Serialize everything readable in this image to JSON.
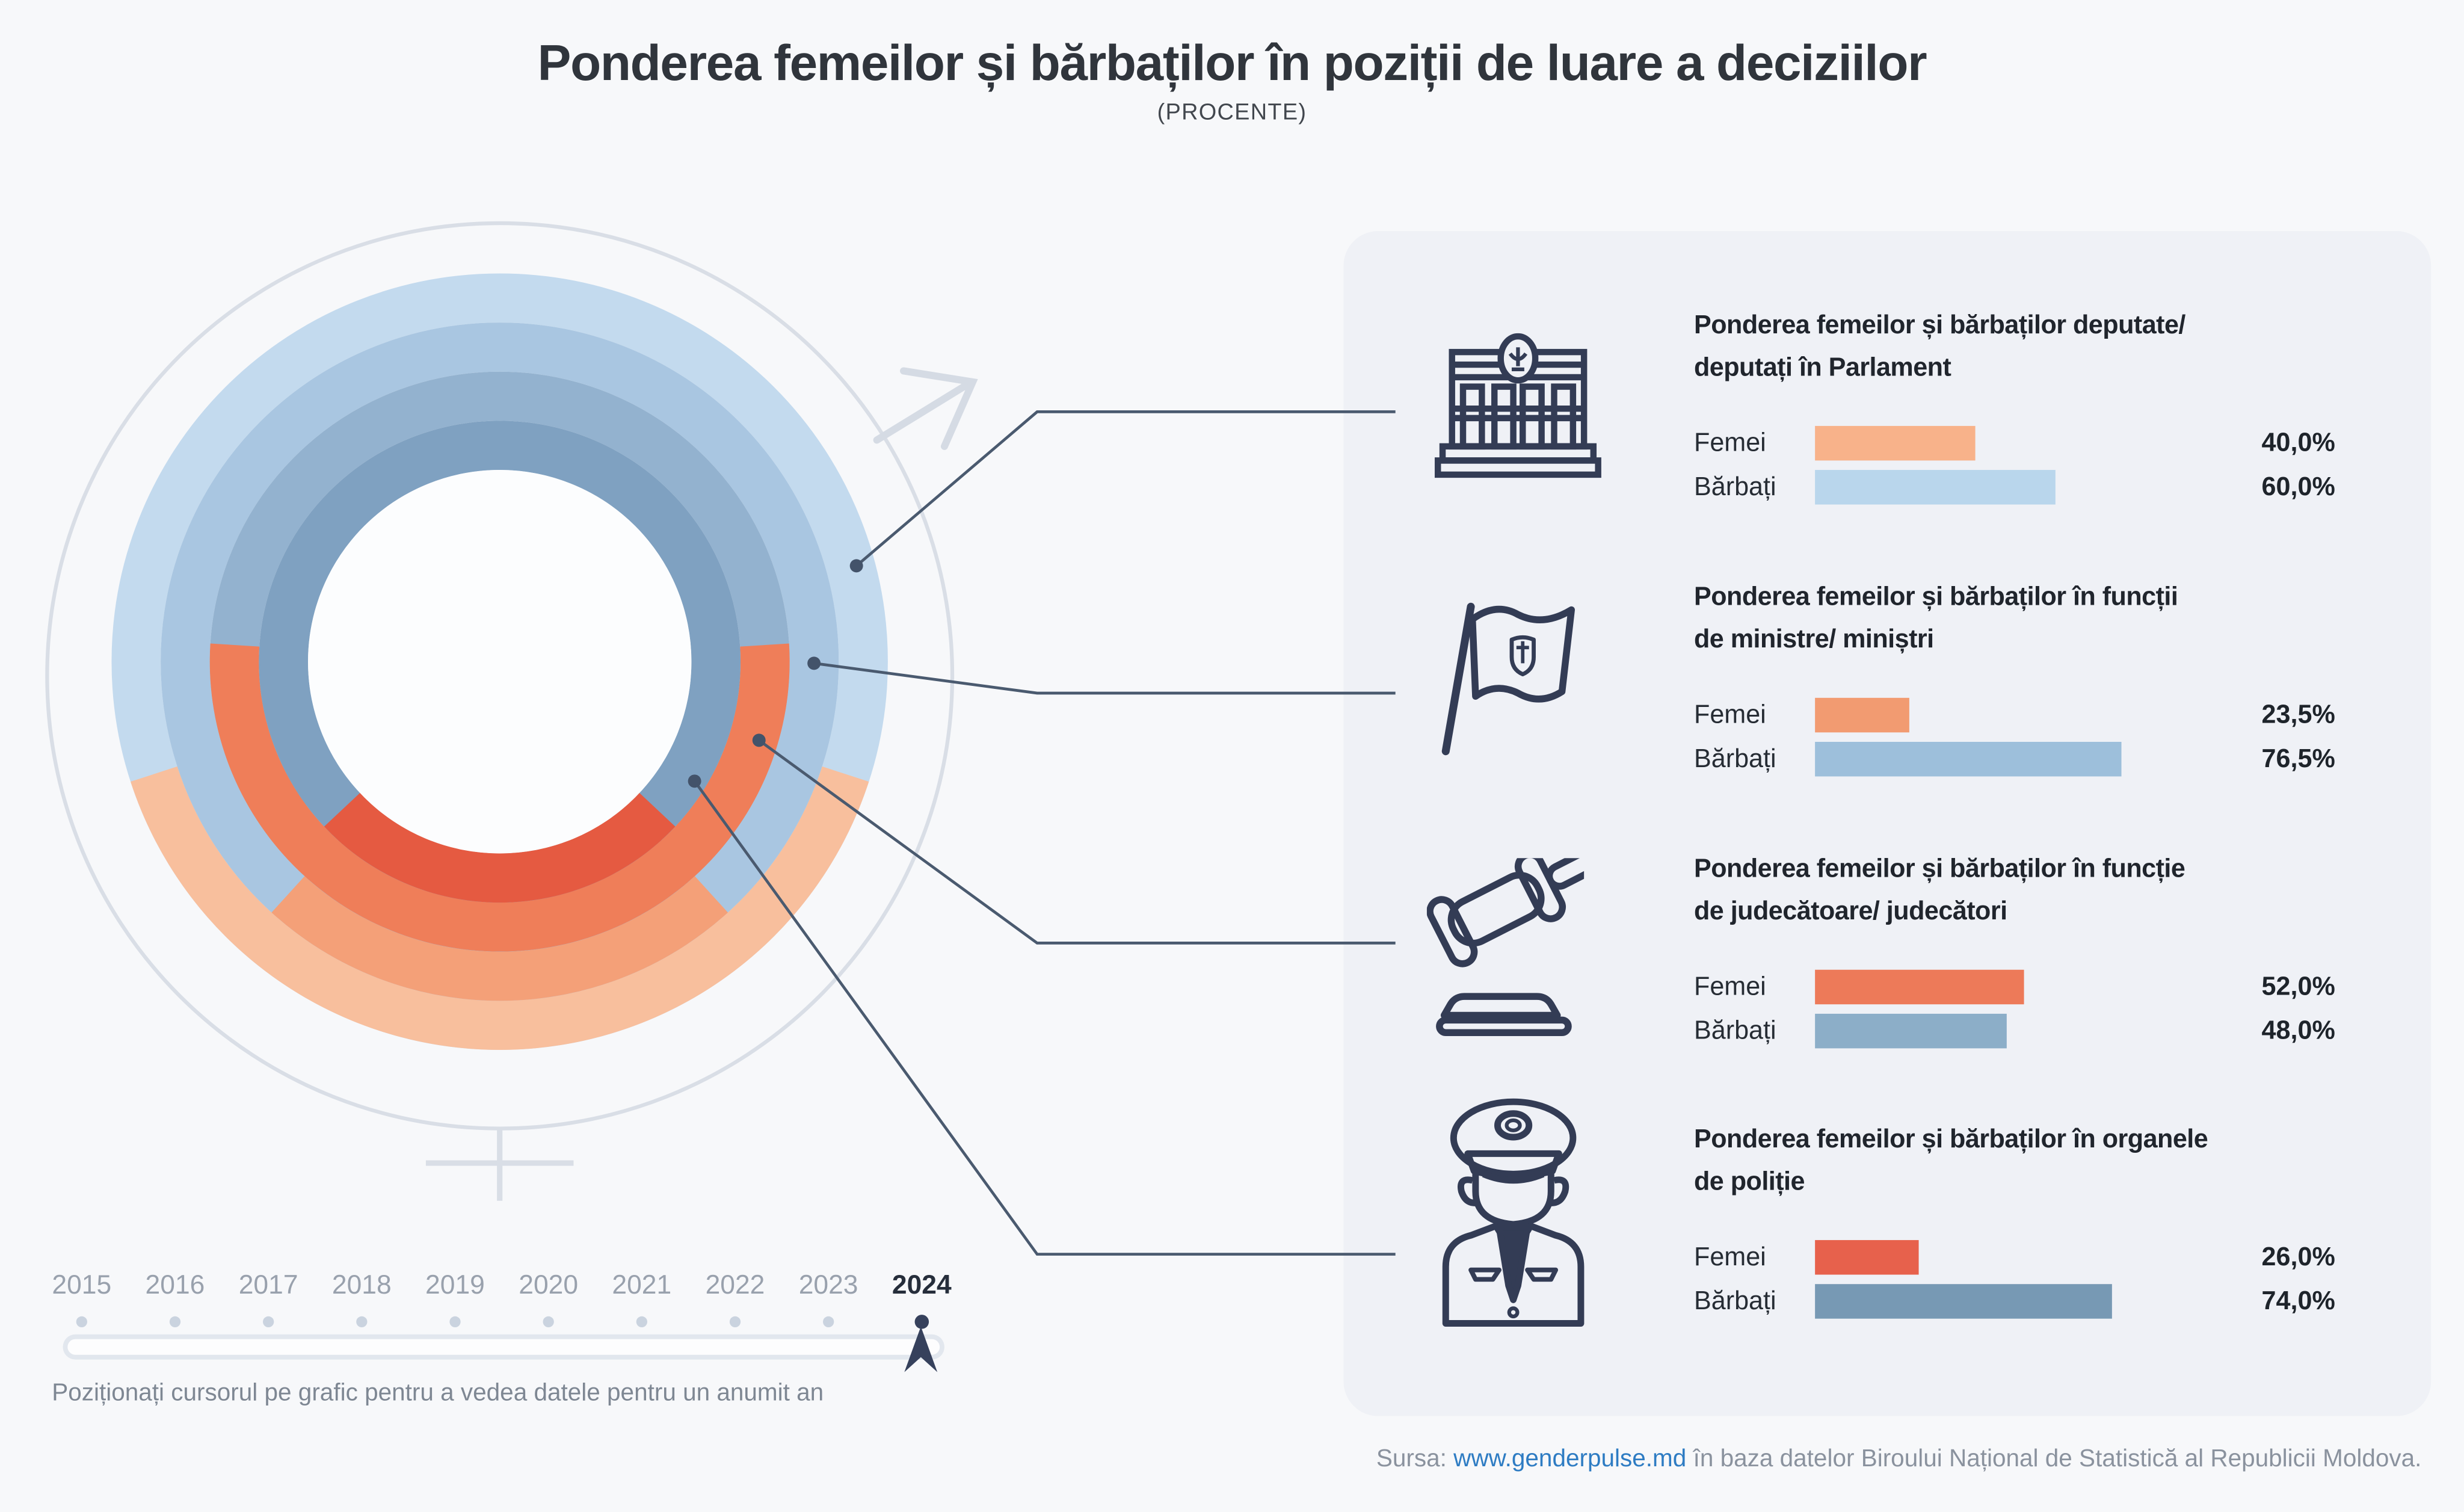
{
  "page": {
    "title": "Ponderea femeilor și bărbaților în poziții de luare a deciziilor",
    "subtitle": "(PROCENTE)"
  },
  "chart_data": {
    "type": "donut",
    "title": "Ponderea femeilor și bărbaților în poziții de luare a deciziilor",
    "unit": "procente",
    "year_shown": "2024",
    "legend": {
      "femei": "Femei",
      "barbati": "Bărbați"
    },
    "women_segment_position": "arc centered at bottom of each ring, span proportional to percentage",
    "rings_outer_to_inner": [
      {
        "category": "Deputate/ deputați în Parlament",
        "femei": 40.0,
        "barbati": 60.0
      },
      {
        "category": "Ministre/ miniștri",
        "femei": 23.5,
        "barbati": 76.5
      },
      {
        "category": "Judecătoare/ judecători",
        "femei": 52.0,
        "barbati": 48.0
      },
      {
        "category": "Organele de poliție",
        "femei": 26.0,
        "barbati": 74.0
      }
    ],
    "colors_femei_outer_to_inner": [
      "#F8BF9D",
      "#F4A078",
      "#EF7E59",
      "#E55A41"
    ],
    "colors_barbati_outer_to_inner": [
      "#C3DAEE",
      "#A9C6E1",
      "#93B2CF",
      "#7FA1C1"
    ]
  },
  "sections": [
    {
      "icon": "parliament-building-icon",
      "title_line1": "Ponderea femeilor și bărbaților deputate/",
      "title_line2": "deputați în Parlament",
      "femei_label": "Femei",
      "barbati_label": "Bărbați",
      "femei_value": 40.0,
      "barbati_value": 60.0,
      "femei_pct": "40,0%",
      "barbati_pct": "60,0%",
      "femei_color": "#F8B28A",
      "barbati_color": "#B9D6EC"
    },
    {
      "icon": "moldova-flag-icon",
      "title_line1": "Ponderea femeilor și bărbaților în funcții",
      "title_line2": "de ministre/ miniștri",
      "femei_label": "Femei",
      "barbati_label": "Bărbați",
      "femei_value": 23.5,
      "barbati_value": 76.5,
      "femei_pct": "23,5%",
      "barbati_pct": "76,5%",
      "femei_color": "#F29B71",
      "barbati_color": "#9DBFDB"
    },
    {
      "icon": "gavel-icon",
      "title_line1": "Ponderea femeilor și bărbaților în funcție",
      "title_line2": "de judecătoare/ judecători",
      "femei_label": "Femei",
      "barbati_label": "Bărbați",
      "femei_value": 52.0,
      "barbati_value": 48.0,
      "femei_pct": "52,0%",
      "barbati_pct": "48,0%",
      "femei_color": "#ED7A59",
      "barbati_color": "#8CAEC8"
    },
    {
      "icon": "police-officer-icon",
      "title_line1": "Ponderea femeilor și bărbaților în organele",
      "title_line2": "de poliție",
      "femei_label": "Femei",
      "barbati_label": "Bărbați",
      "femei_value": 26.0,
      "barbati_value": 74.0,
      "femei_pct": "26,0%",
      "barbati_pct": "74,0%",
      "femei_color": "#E7614C",
      "barbati_color": "#7799B4"
    }
  ],
  "slider": {
    "years": [
      "2015",
      "2016",
      "2017",
      "2018",
      "2019",
      "2020",
      "2021",
      "2022",
      "2023",
      "2024"
    ],
    "active_year": "2024",
    "instruction": "Poziționați cursorul pe grafic pentru a vedea datele pentru un anumit an"
  },
  "source": {
    "label": "Sursa:",
    "link": "www.genderpulse.md",
    "text_after": "în baza datelor Biroului Național de Statistică al Republicii Moldova."
  }
}
